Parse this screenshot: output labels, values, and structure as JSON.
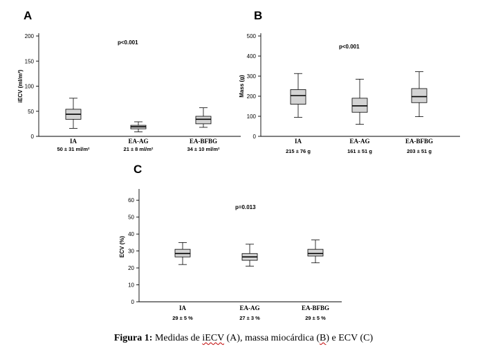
{
  "chart_data": [
    {
      "type": "box",
      "panel_label": "A",
      "ylabel": "iECV (ml/m²)",
      "ylim": [
        0,
        200
      ],
      "yticks": [
        0,
        50,
        100,
        150,
        200
      ],
      "p_value": "p<0.001",
      "grid": false,
      "categories": [
        "IA",
        "EA-AG",
        "EA-BFBG"
      ],
      "stats_text": [
        "50 ± 31 ml/m²",
        "21 ± 8 ml/m²",
        "34 ± 10 ml/m²"
      ],
      "boxes": [
        {
          "min": 16,
          "q1": 34,
          "median": 44,
          "q3": 54,
          "max": 76
        },
        {
          "min": 9,
          "q1": 15,
          "median": 19,
          "q3": 22,
          "max": 29
        },
        {
          "min": 18,
          "q1": 25,
          "median": 34,
          "q3": 40,
          "max": 57
        }
      ]
    },
    {
      "type": "box",
      "panel_label": "B",
      "ylabel": "Mass (g)",
      "ylim": [
        0,
        500
      ],
      "yticks": [
        0,
        100,
        200,
        300,
        400,
        500
      ],
      "p_value": "p<0.001",
      "grid": false,
      "categories": [
        "IA",
        "EA-AG",
        "EA-BFBG"
      ],
      "stats_text": [
        "215 ± 76 g",
        "161 ± 51 g",
        "203 ± 51 g"
      ],
      "boxes": [
        {
          "min": 95,
          "q1": 160,
          "median": 203,
          "q3": 233,
          "max": 313
        },
        {
          "min": 60,
          "q1": 120,
          "median": 152,
          "q3": 190,
          "max": 285
        },
        {
          "min": 98,
          "q1": 168,
          "median": 198,
          "q3": 238,
          "max": 322
        }
      ]
    },
    {
      "type": "box",
      "panel_label": "C",
      "ylabel": "ECV (%)",
      "ylim": [
        0,
        65
      ],
      "yticks": [
        0,
        10,
        20,
        30,
        40,
        50,
        60
      ],
      "p_value": "p=0.013",
      "grid": false,
      "categories": [
        "IA",
        "EA-AG",
        "EA-BFBG"
      ],
      "stats_text": [
        "29 ± 5 %",
        "27 ± 3 %",
        "29 ± 5 %"
      ],
      "boxes": [
        {
          "min": 22,
          "q1": 26.5,
          "median": 28.5,
          "q3": 31,
          "max": 35
        },
        {
          "min": 21,
          "q1": 24.5,
          "median": 26.5,
          "q3": 28.5,
          "max": 34
        },
        {
          "min": 23,
          "q1": 27,
          "median": 28.5,
          "q3": 31,
          "max": 36.5
        }
      ]
    }
  ],
  "caption": {
    "prefix": "Figura 1:",
    "before": " Medidas de ",
    "iecv": "iECV",
    "middle": " (A), massa miocárdica (",
    "b": "B",
    "after": ") e ECV (C)"
  }
}
